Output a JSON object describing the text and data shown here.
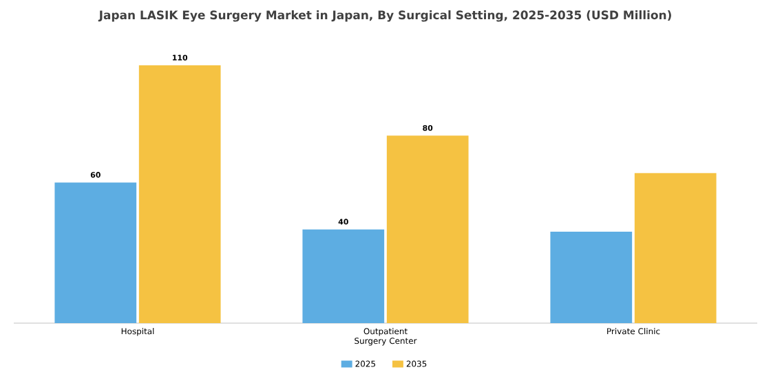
{
  "chart_data": {
    "type": "bar",
    "title": "Japan LASIK Eye Surgery Market in Japan, By Surgical Setting, 2025-2035 (USD Million)",
    "categories": [
      "Hospital",
      "Outpatient Surgery Center",
      "Private Clinic"
    ],
    "series": [
      {
        "name": "2025",
        "color": "#5dade2",
        "values": [
          60,
          40,
          39
        ],
        "value_labels": [
          "60",
          "40",
          null
        ]
      },
      {
        "name": "2035",
        "color": "#f5c242",
        "values": [
          110,
          80,
          64
        ],
        "value_labels": [
          "110",
          "80",
          null
        ]
      }
    ],
    "legend": "bottom"
  }
}
